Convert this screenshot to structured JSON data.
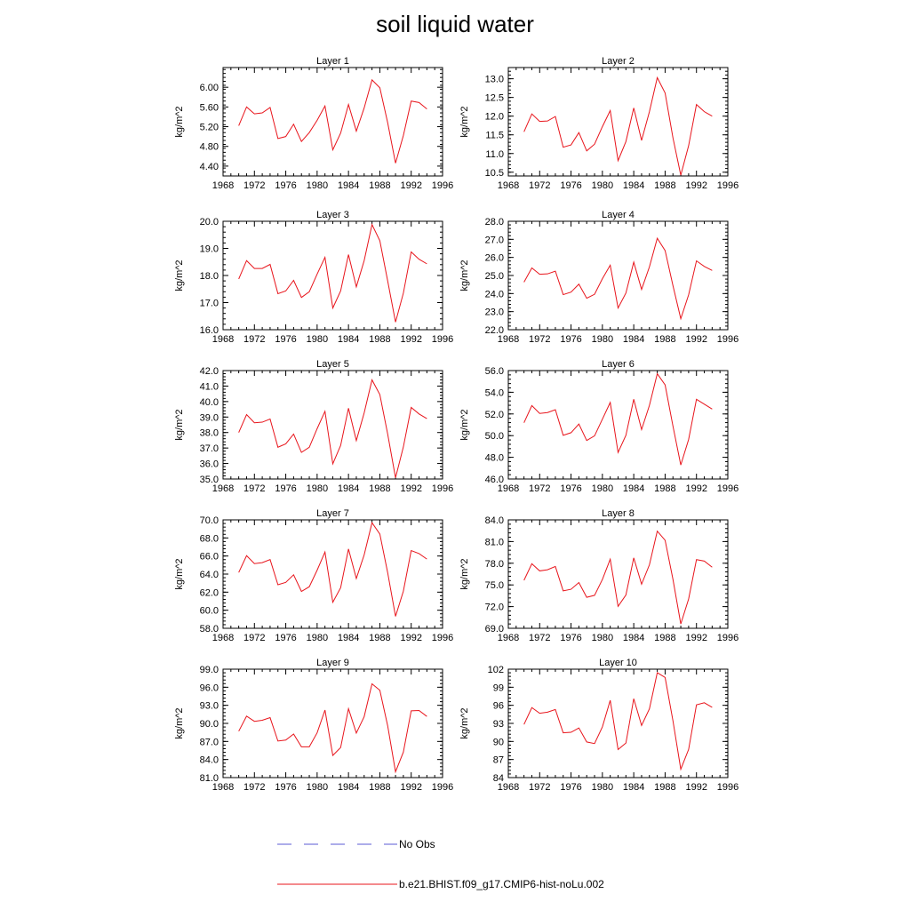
{
  "figure": {
    "title": "soil liquid water",
    "legend": [
      {
        "label": "No Obs",
        "color": "#5b5bd6",
        "style": "dashed"
      },
      {
        "label": "b.e21.BHIST.f09_g17.CMIP6-hist-noLu.002",
        "color": "#e8141b",
        "style": "solid"
      }
    ]
  },
  "chart_data": [
    {
      "type": "line",
      "title": "Layer 1",
      "xlabel": "",
      "ylabel": "kg/m^2",
      "xlim": [
        1968,
        1996
      ],
      "ylim": [
        4.2,
        6.4
      ],
      "xticks": [
        "1968",
        "1972",
        "1976",
        "1980",
        "1984",
        "1988",
        "1992",
        "1996"
      ],
      "yticks": [
        "4.40",
        "4.80",
        "5.20",
        "5.60",
        "6.00"
      ],
      "series": [
        {
          "color": "#e8141b",
          "x": [
            1970,
            1971,
            1972,
            1973,
            1974,
            1975,
            1976,
            1977,
            1978,
            1979,
            1980,
            1981,
            1982,
            1983,
            1984,
            1985,
            1986,
            1987,
            1988,
            1989,
            1990,
            1991,
            1992,
            1993,
            1994
          ],
          "y": [
            5.22,
            5.6,
            5.46,
            5.48,
            5.59,
            4.96,
            5.0,
            5.25,
            4.9,
            5.08,
            5.33,
            5.62,
            4.73,
            5.07,
            5.65,
            5.11,
            5.58,
            6.15,
            5.99,
            5.28,
            4.46,
            5.02,
            5.72,
            5.69,
            5.56
          ]
        }
      ]
    },
    {
      "type": "line",
      "title": "Layer 2",
      "xlabel": "",
      "ylabel": "kg/m^2",
      "xlim": [
        1968,
        1996
      ],
      "ylim": [
        10.4,
        13.3
      ],
      "xticks": [
        "1968",
        "1972",
        "1976",
        "1980",
        "1984",
        "1988",
        "1992",
        "1996"
      ],
      "yticks": [
        "10.5",
        "11.0",
        "11.5",
        "12.0",
        "12.5",
        "13.0"
      ],
      "series": [
        {
          "color": "#e8141b",
          "x": [
            1970,
            1971,
            1972,
            1973,
            1974,
            1975,
            1976,
            1977,
            1978,
            1979,
            1980,
            1981,
            1982,
            1983,
            1984,
            1985,
            1986,
            1987,
            1988,
            1989,
            1990,
            1991,
            1992,
            1993,
            1994
          ],
          "y": [
            11.58,
            12.06,
            11.86,
            11.87,
            11.99,
            11.17,
            11.23,
            11.56,
            11.07,
            11.25,
            11.72,
            12.15,
            10.81,
            11.32,
            12.22,
            11.35,
            12.12,
            13.03,
            12.62,
            11.42,
            10.42,
            11.21,
            12.31,
            12.12,
            12.0
          ]
        }
      ]
    },
    {
      "type": "line",
      "title": "Layer 3",
      "xlabel": "",
      "ylabel": "kg/m^2",
      "xlim": [
        1968,
        1996
      ],
      "ylim": [
        16.0,
        20.0
      ],
      "xticks": [
        "1968",
        "1972",
        "1976",
        "1980",
        "1984",
        "1988",
        "1992",
        "1996"
      ],
      "yticks": [
        "16.0",
        "17.0",
        "18.0",
        "19.0",
        "20.0"
      ],
      "series": [
        {
          "color": "#e8141b",
          "x": [
            1970,
            1971,
            1972,
            1973,
            1974,
            1975,
            1976,
            1977,
            1978,
            1979,
            1980,
            1981,
            1982,
            1983,
            1984,
            1985,
            1986,
            1987,
            1988,
            1989,
            1990,
            1991,
            1992,
            1993,
            1994
          ],
          "y": [
            17.87,
            18.55,
            18.26,
            18.26,
            18.41,
            17.33,
            17.43,
            17.82,
            17.19,
            17.4,
            18.05,
            18.67,
            16.8,
            17.43,
            18.77,
            17.58,
            18.55,
            19.88,
            19.28,
            17.8,
            16.28,
            17.35,
            18.87,
            18.6,
            18.43
          ]
        }
      ]
    },
    {
      "type": "line",
      "title": "Layer 4",
      "xlabel": "",
      "ylabel": "kg/m^2",
      "xlim": [
        1968,
        1996
      ],
      "ylim": [
        22.0,
        28.0
      ],
      "xticks": [
        "1968",
        "1972",
        "1976",
        "1980",
        "1984",
        "1988",
        "1992",
        "1996"
      ],
      "yticks": [
        "22.0",
        "23.0",
        "24.0",
        "25.0",
        "26.0",
        "27.0",
        "28.0"
      ],
      "series": [
        {
          "color": "#e8141b",
          "x": [
            1970,
            1971,
            1972,
            1973,
            1974,
            1975,
            1976,
            1977,
            1978,
            1979,
            1980,
            1981,
            1982,
            1983,
            1984,
            1985,
            1986,
            1987,
            1988,
            1989,
            1990,
            1991,
            1992,
            1993,
            1994
          ],
          "y": [
            24.63,
            25.42,
            25.07,
            25.09,
            25.24,
            23.94,
            24.08,
            24.52,
            23.74,
            23.96,
            24.82,
            25.57,
            23.2,
            24.03,
            25.74,
            24.23,
            25.48,
            27.06,
            26.38,
            24.44,
            22.61,
            23.93,
            25.81,
            25.5,
            25.28
          ]
        }
      ]
    },
    {
      "type": "line",
      "title": "Layer 5",
      "xlabel": "",
      "ylabel": "kg/m^2",
      "xlim": [
        1968,
        1996
      ],
      "ylim": [
        35.0,
        42.0
      ],
      "xticks": [
        "1968",
        "1972",
        "1976",
        "1980",
        "1984",
        "1988",
        "1992",
        "1996"
      ],
      "yticks": [
        "35.0",
        "36.0",
        "37.0",
        "38.0",
        "39.0",
        "40.0",
        "41.0",
        "42.0"
      ],
      "series": [
        {
          "color": "#e8141b",
          "x": [
            1970,
            1971,
            1972,
            1973,
            1974,
            1975,
            1976,
            1977,
            1978,
            1979,
            1980,
            1981,
            1982,
            1983,
            1984,
            1985,
            1986,
            1987,
            1988,
            1989,
            1990,
            1991,
            1992,
            1993,
            1994
          ],
          "y": [
            38.0,
            39.16,
            38.63,
            38.67,
            38.87,
            37.05,
            37.27,
            37.9,
            36.72,
            37.05,
            38.25,
            39.37,
            35.98,
            37.17,
            39.57,
            37.48,
            39.27,
            41.4,
            40.45,
            37.9,
            35.08,
            37.07,
            39.62,
            39.2,
            38.9
          ]
        }
      ]
    },
    {
      "type": "line",
      "title": "Layer 6",
      "xlabel": "",
      "ylabel": "kg/m^2",
      "xlim": [
        1968,
        1996
      ],
      "ylim": [
        46.0,
        56.0
      ],
      "xticks": [
        "1968",
        "1972",
        "1976",
        "1980",
        "1984",
        "1988",
        "1992",
        "1996"
      ],
      "yticks": [
        "46.0",
        "48.0",
        "50.0",
        "52.0",
        "54.0",
        "56.0"
      ],
      "series": [
        {
          "color": "#e8141b",
          "x": [
            1970,
            1971,
            1972,
            1973,
            1974,
            1975,
            1976,
            1977,
            1978,
            1979,
            1980,
            1981,
            1982,
            1983,
            1984,
            1985,
            1986,
            1987,
            1988,
            1989,
            1990,
            1991,
            1992,
            1993,
            1994
          ],
          "y": [
            51.19,
            52.77,
            52.05,
            52.13,
            52.39,
            50.03,
            50.27,
            51.07,
            49.55,
            49.98,
            51.52,
            53.06,
            48.45,
            50.03,
            53.36,
            50.56,
            52.79,
            55.71,
            54.68,
            50.88,
            47.29,
            49.65,
            53.35,
            52.9,
            52.45
          ]
        }
      ]
    },
    {
      "type": "line",
      "title": "Layer 7",
      "xlabel": "",
      "ylabel": "kg/m^2",
      "xlim": [
        1968,
        1996
      ],
      "ylim": [
        58.0,
        70.0
      ],
      "xticks": [
        "1968",
        "1972",
        "1976",
        "1980",
        "1984",
        "1988",
        "1992",
        "1996"
      ],
      "yticks": [
        "58.0",
        "60.0",
        "62.0",
        "64.0",
        "66.0",
        "68.0",
        "70.0"
      ],
      "series": [
        {
          "color": "#e8141b",
          "x": [
            1970,
            1971,
            1972,
            1973,
            1974,
            1975,
            1976,
            1977,
            1978,
            1979,
            1980,
            1981,
            1982,
            1983,
            1984,
            1985,
            1986,
            1987,
            1988,
            1989,
            1990,
            1991,
            1992,
            1993,
            1994
          ],
          "y": [
            64.18,
            66.04,
            65.16,
            65.27,
            65.61,
            62.82,
            63.08,
            63.92,
            62.08,
            62.6,
            64.43,
            66.44,
            60.88,
            62.49,
            66.78,
            63.51,
            66.13,
            69.68,
            68.43,
            64.15,
            59.32,
            62.11,
            66.6,
            66.27,
            65.66
          ]
        }
      ]
    },
    {
      "type": "line",
      "title": "Layer 8",
      "xlabel": "",
      "ylabel": "kg/m^2",
      "xlim": [
        1968,
        1996
      ],
      "ylim": [
        69.0,
        84.0
      ],
      "xticks": [
        "1968",
        "1972",
        "1976",
        "1980",
        "1984",
        "1988",
        "1992",
        "1996"
      ],
      "yticks": [
        "69.0",
        "72.0",
        "75.0",
        "78.0",
        "81.0",
        "84.0"
      ],
      "series": [
        {
          "color": "#e8141b",
          "x": [
            1970,
            1971,
            1972,
            1973,
            1974,
            1975,
            1976,
            1977,
            1978,
            1979,
            1980,
            1981,
            1982,
            1983,
            1984,
            1985,
            1986,
            1987,
            1988,
            1989,
            1990,
            1991,
            1992,
            1993,
            1994
          ],
          "y": [
            75.64,
            77.93,
            76.94,
            77.1,
            77.55,
            74.18,
            74.4,
            75.33,
            73.29,
            73.56,
            75.75,
            78.56,
            72.04,
            73.61,
            78.74,
            75.1,
            77.79,
            82.44,
            81.18,
            75.78,
            69.6,
            73.06,
            78.5,
            78.3,
            77.45
          ]
        }
      ]
    },
    {
      "type": "line",
      "title": "Layer 9",
      "xlabel": "",
      "ylabel": "kg/m^2",
      "xlim": [
        1968,
        1996
      ],
      "ylim": [
        81.0,
        99.0
      ],
      "xticks": [
        "1968",
        "1972",
        "1976",
        "1980",
        "1984",
        "1988",
        "1992",
        "1996"
      ],
      "yticks": [
        "81.0",
        "84.0",
        "87.0",
        "90.0",
        "93.0",
        "96.0",
        "99.0"
      ],
      "series": [
        {
          "color": "#e8141b",
          "x": [
            1970,
            1971,
            1972,
            1973,
            1974,
            1975,
            1976,
            1977,
            1978,
            1979,
            1980,
            1981,
            1982,
            1983,
            1984,
            1985,
            1986,
            1987,
            1988,
            1989,
            1990,
            1991,
            1992,
            1993,
            1994
          ],
          "y": [
            88.7,
            91.2,
            90.34,
            90.52,
            90.95,
            87.07,
            87.24,
            88.24,
            86.1,
            86.1,
            88.44,
            92.21,
            84.67,
            85.99,
            92.44,
            88.39,
            91.12,
            96.56,
            95.49,
            89.6,
            81.96,
            85.23,
            92.09,
            92.14,
            91.15
          ]
        }
      ]
    },
    {
      "type": "line",
      "title": "Layer 10",
      "xlabel": "",
      "ylabel": "kg/m^2",
      "xlim": [
        1968,
        1996
      ],
      "ylim": [
        84,
        102
      ],
      "xticks": [
        "1968",
        "1972",
        "1976",
        "1980",
        "1984",
        "1988",
        "1992",
        "1996"
      ],
      "yticks": [
        "84",
        "87",
        "90",
        "93",
        "96",
        "99",
        "102"
      ],
      "series": [
        {
          "color": "#e8141b",
          "x": [
            1970,
            1971,
            1972,
            1973,
            1974,
            1975,
            1976,
            1977,
            1978,
            1979,
            1980,
            1981,
            1982,
            1983,
            1984,
            1985,
            1986,
            1987,
            1988,
            1989,
            1990,
            1991,
            1992,
            1993,
            1994
          ],
          "y": [
            92.83,
            95.62,
            94.68,
            94.86,
            95.31,
            91.43,
            91.52,
            92.24,
            89.92,
            89.65,
            92.42,
            96.83,
            88.66,
            89.73,
            97.1,
            92.65,
            95.42,
            101.42,
            100.62,
            93.43,
            85.39,
            88.68,
            96.07,
            96.42,
            95.66
          ]
        }
      ]
    }
  ]
}
